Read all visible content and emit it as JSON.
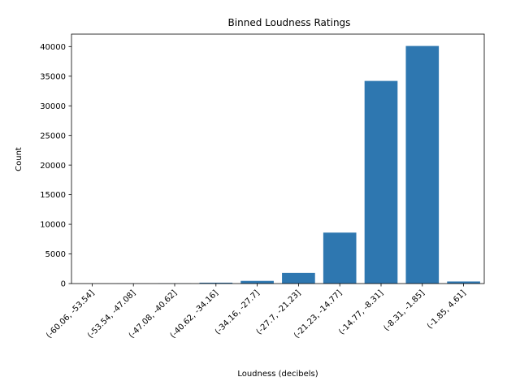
{
  "chart_data": {
    "type": "bar",
    "title": "Binned Loudness Ratings",
    "xlabel": "Loudness (decibels)",
    "ylabel": "Count",
    "categories": [
      "(-60.06, -53.54]",
      "(-53.54, -47.08]",
      "(-47.08, -40.62]",
      "(-40.62, -34.16]",
      "(-34.16, -27.7]",
      "(-27.7, -21.23]",
      "(-21.23, -14.77]",
      "(-14.77, -8.31]",
      "(-8.31, -1.85]",
      "(-1.85, 4.61]"
    ],
    "values": [
      5,
      12,
      30,
      150,
      450,
      1800,
      8600,
      34200,
      40100,
      350
    ],
    "ylim": [
      0,
      42100
    ],
    "yticks": [
      0,
      5000,
      10000,
      15000,
      20000,
      25000,
      30000,
      35000,
      40000
    ],
    "bar_color": "#2e77b0",
    "grid": false,
    "legend": "none"
  }
}
